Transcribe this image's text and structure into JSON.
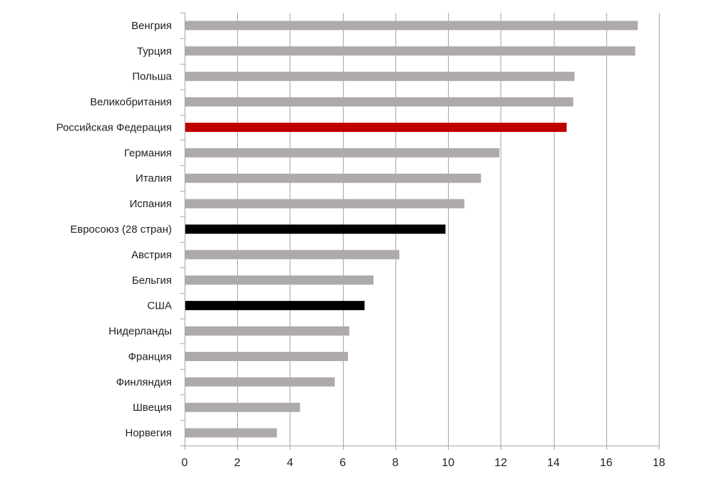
{
  "chart_data": {
    "type": "bar",
    "orientation": "horizontal",
    "title": "",
    "xlabel": "",
    "ylabel": "",
    "xlim": [
      0,
      18
    ],
    "x_ticks": [
      0,
      2,
      4,
      6,
      8,
      10,
      12,
      14,
      16,
      18
    ],
    "grid": "vertical",
    "legend": "none",
    "categories": [
      "Венгрия",
      "Турция",
      "Польша",
      "Великобритания",
      "Российская Федерация",
      "Германия",
      "Италия",
      "Испания",
      "Евросоюз (28 стран)",
      "Австрия",
      "Бельгия",
      "США",
      "Нидерланды",
      "Франция",
      "Финляндия",
      "Швеция",
      "Норвегия"
    ],
    "values": [
      17.2,
      17.1,
      14.8,
      14.75,
      14.5,
      11.95,
      11.25,
      10.62,
      9.9,
      8.15,
      7.17,
      6.83,
      6.25,
      6.2,
      5.7,
      4.38,
      3.5
    ],
    "bar_colors": [
      "#aeaaaa",
      "#aeaaaa",
      "#aeaaaa",
      "#aeaaaa",
      "#c00000",
      "#aeaaaa",
      "#aeaaaa",
      "#aeaaaa",
      "#000000",
      "#aeaaaa",
      "#aeaaaa",
      "#000000",
      "#aeaaaa",
      "#aeaaaa",
      "#aeaaaa",
      "#aeaaaa",
      "#aeaaaa"
    ],
    "colors": {
      "default_bar": "#aeaaaa",
      "highlight_russia": "#c00000",
      "highlight_reference": "#000000",
      "grid": "#a6a6a6",
      "axis": "#a6a6a6",
      "text": "#1f1f1f"
    }
  }
}
